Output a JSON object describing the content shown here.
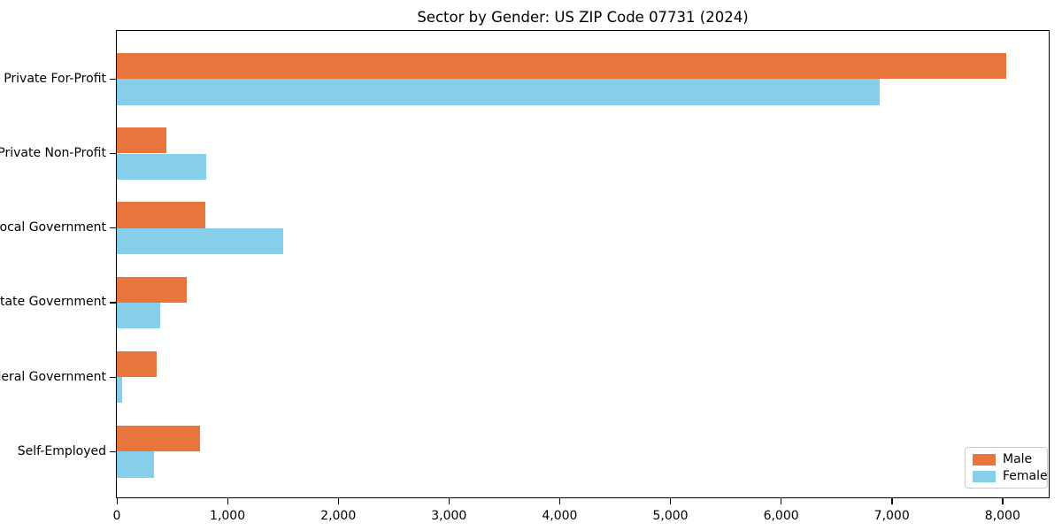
{
  "chart_data": {
    "type": "bar",
    "orientation": "horizontal",
    "title": "Sector by Gender: US ZIP Code 07731 (2024)",
    "categories": [
      "Private For-Profit",
      "Private Non-Profit",
      "Local Government",
      "State Government",
      "Federal Government",
      "Self-Employed"
    ],
    "series": [
      {
        "name": "Male",
        "color": "#e8763c",
        "values": [
          8030,
          445,
          800,
          630,
          360,
          750
        ]
      },
      {
        "name": "Female",
        "color": "#87ceeb",
        "values": [
          6890,
          810,
          1500,
          390,
          45,
          335
        ]
      }
    ],
    "xlabel": "",
    "ylabel": "",
    "xlim": [
      0,
      8433
    ],
    "xticks": [
      0,
      1000,
      2000,
      3000,
      4000,
      5000,
      6000,
      7000,
      8000
    ],
    "xtick_labels": [
      "0",
      "1,000",
      "2,000",
      "3,000",
      "4,000",
      "5,000",
      "6,000",
      "7,000",
      "8,000"
    ],
    "grid": false,
    "legend_position": "lower right"
  }
}
